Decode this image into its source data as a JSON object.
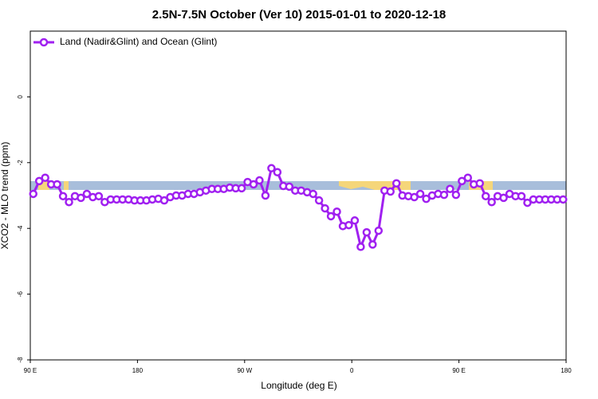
{
  "chart_data": {
    "type": "line",
    "title": "2.5N-7.5N October (Ver 10)   2015-01-01 to 2020-12-18",
    "x_label": "Longitude (deg E)",
    "y_label": "XCO2 - MLO trend (ppm)",
    "legend": "top-left",
    "xlim": [
      90,
      540
    ],
    "xticks": [
      {
        "value": 90,
        "label": "90 E"
      },
      {
        "value": 180,
        "label": "180"
      },
      {
        "value": 270,
        "label": "90 W"
      },
      {
        "value": 360,
        "label": "0"
      },
      {
        "value": 450,
        "label": "90 E"
      },
      {
        "value": 540,
        "label": "180"
      }
    ],
    "ylim": [
      -8,
      2
    ],
    "yticks": [
      0,
      -2,
      -4,
      -6,
      -8
    ],
    "x": [
      92.5,
      97.5,
      102.5,
      107.5,
      112.5,
      117.5,
      122.5,
      127.5,
      132.5,
      137.5,
      142.5,
      147.5,
      152.5,
      157.5,
      162.5,
      167.5,
      172.5,
      177.5,
      182.5,
      187.5,
      192.5,
      197.5,
      202.5,
      207.5,
      212.5,
      217.5,
      222.5,
      227.5,
      232.5,
      237.5,
      242.5,
      247.5,
      252.5,
      257.5,
      262.5,
      267.5,
      272.5,
      277.5,
      282.5,
      287.5,
      292.5,
      297.5,
      302.5,
      307.5,
      312.5,
      317.5,
      322.5,
      327.5,
      332.5,
      337.5,
      342.5,
      347.5,
      352.5,
      357.5,
      362.5,
      367.5,
      372.5,
      377.5,
      382.5,
      387.5,
      392.5,
      397.5,
      402.5,
      407.5,
      412.5,
      417.5,
      422.5,
      427.5,
      432.5,
      437.5,
      442.5,
      447.5,
      452.5,
      457.5,
      462.5,
      467.5,
      472.5,
      477.5,
      482.5,
      487.5,
      492.5,
      497.5,
      502.5,
      507.5,
      512.5,
      517.5,
      522.5,
      527.5,
      532.5,
      537.5
    ],
    "series": [
      {
        "name": "Land (Nadir&Glint) and Ocean (Glint)",
        "color": "#a020f0",
        "values": [
          -2.95,
          -2.56,
          -2.46,
          -2.66,
          -2.66,
          -3.02,
          -3.2,
          -3.02,
          -3.07,
          -2.95,
          -3.05,
          -3.02,
          -3.2,
          -3.12,
          -3.12,
          -3.12,
          -3.12,
          -3.15,
          -3.15,
          -3.15,
          -3.12,
          -3.1,
          -3.15,
          -3.05,
          -3.0,
          -3.0,
          -2.95,
          -2.95,
          -2.9,
          -2.85,
          -2.8,
          -2.8,
          -2.8,
          -2.76,
          -2.78,
          -2.78,
          -2.59,
          -2.66,
          -2.54,
          -3.0,
          -2.17,
          -2.29,
          -2.71,
          -2.73,
          -2.85,
          -2.85,
          -2.9,
          -2.95,
          -3.15,
          -3.39,
          -3.63,
          -3.49,
          -3.93,
          -3.9,
          -3.76,
          -4.56,
          -4.12,
          -4.49,
          -4.07,
          -2.85,
          -2.88,
          -2.63,
          -3.0,
          -3.02,
          -3.05,
          -2.95,
          -3.1,
          -3.0,
          -2.95,
          -2.98,
          -2.8,
          -2.98,
          -2.56,
          -2.46,
          -2.66,
          -2.63,
          -3.02,
          -3.2,
          -3.02,
          -3.07,
          -2.95,
          -3.02,
          -3.02,
          -3.22,
          -3.12,
          -3.12,
          -3.12,
          -3.12,
          -3.12,
          -3.12
        ]
      }
    ]
  }
}
